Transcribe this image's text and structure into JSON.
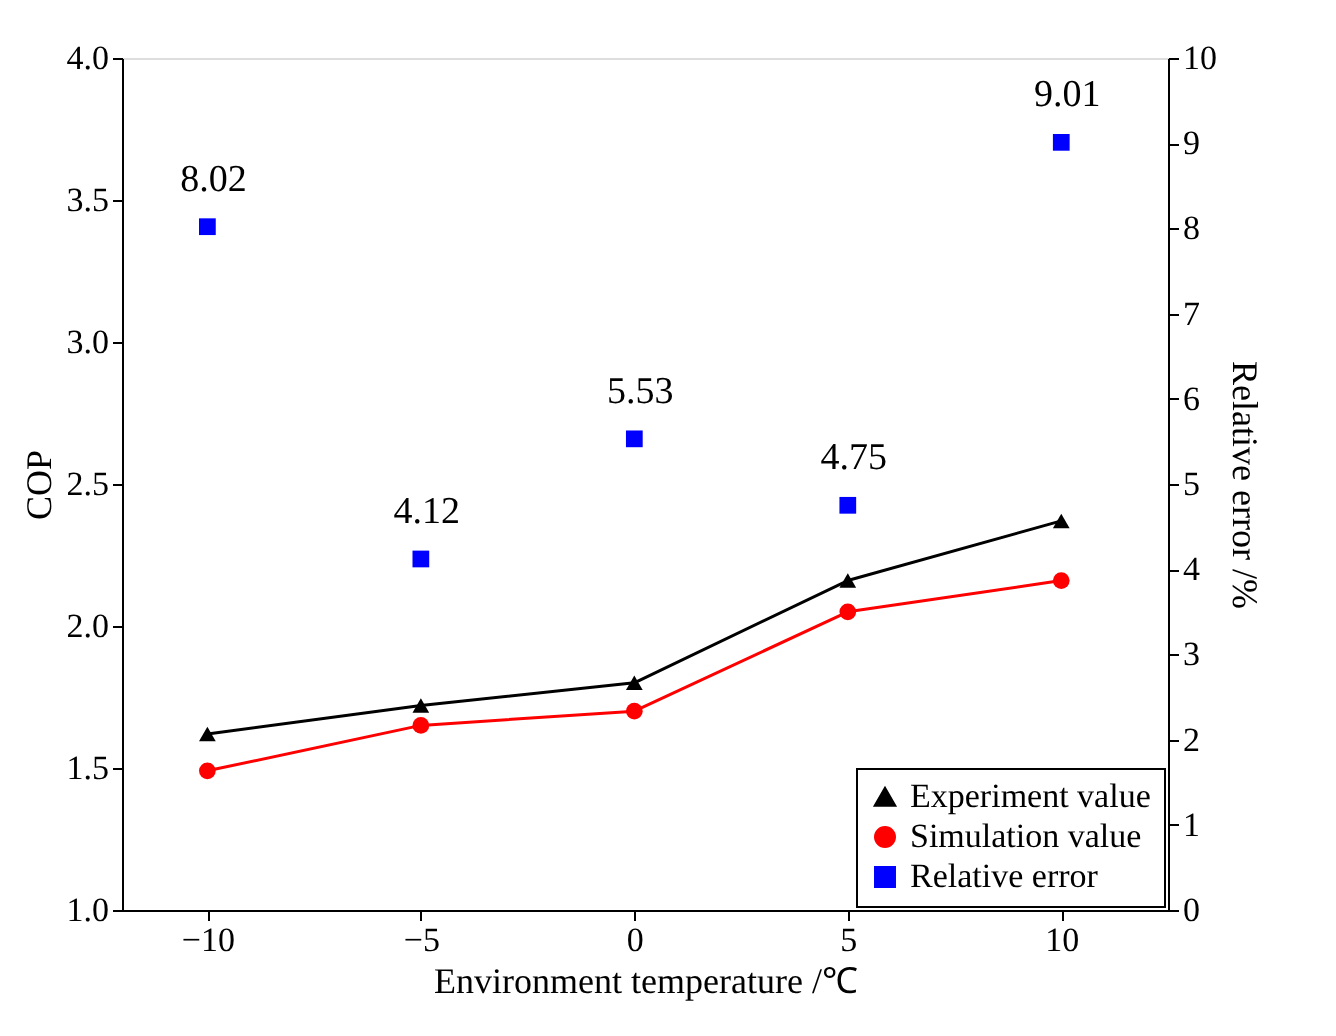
{
  "chart_data": {
    "type": "line",
    "xlabel": "Environment temperature /℃",
    "ylabel": "COP",
    "y2label": "Relative error /%",
    "x": [
      -10,
      -5,
      0,
      5,
      10
    ],
    "series": [
      {
        "name": "Experiment value",
        "color": "#000000",
        "marker": "triangle",
        "values": [
          1.62,
          1.72,
          1.8,
          2.16,
          2.37
        ]
      },
      {
        "name": "Simulation value",
        "color": "#ff0000",
        "marker": "circle",
        "values": [
          1.49,
          1.65,
          1.7,
          2.05,
          2.16
        ]
      },
      {
        "name": "Relative error",
        "type": "scatter",
        "axis": "y2",
        "color": "#0000ff",
        "marker": "square",
        "values": [
          8.02,
          4.12,
          5.53,
          4.75,
          9.01
        ],
        "value_labels": [
          "8.02",
          "4.12",
          "5.53",
          "4.75",
          "9.01"
        ]
      }
    ],
    "xlim": [
      -12,
      12.5
    ],
    "xticks": [
      -10,
      -5,
      0,
      5,
      10
    ],
    "ylim": [
      1.0,
      4.0
    ],
    "yticks": [
      {
        "value": 1,
        "label": "1.0"
      },
      {
        "value": 1.5,
        "label": "1.5"
      },
      {
        "value": 2,
        "label": "2.0"
      },
      {
        "value": 2.5,
        "label": "2.5"
      },
      {
        "value": 3,
        "label": "3.0"
      },
      {
        "value": 3.5,
        "label": "3.5"
      },
      {
        "value": 4,
        "label": "4.0"
      }
    ],
    "y2lim": [
      0,
      10
    ],
    "y2ticks": [
      0,
      1,
      2,
      3,
      4,
      5,
      6,
      7,
      8,
      9,
      10
    ],
    "grid": false,
    "legend": "bottom right"
  }
}
